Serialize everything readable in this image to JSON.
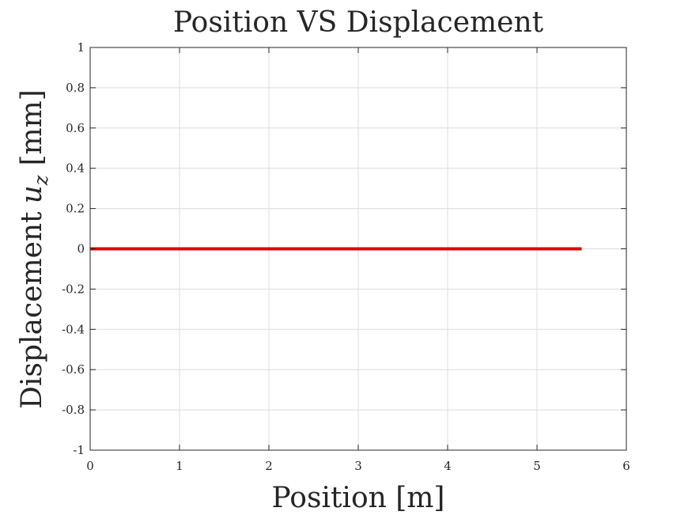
{
  "chart_data": {
    "type": "line",
    "title": "Position VS Displacement",
    "xlabel": "Position [m]",
    "ylabel_main": "Displacement",
    "ylabel_var": "u",
    "ylabel_sub": "z",
    "ylabel_unit": "[mm]",
    "xlim": [
      0,
      6
    ],
    "ylim": [
      -1,
      1
    ],
    "xticks": [
      0,
      1,
      2,
      3,
      4,
      5,
      6
    ],
    "yticks": [
      -1,
      -0.8,
      -0.6,
      -0.4,
      -0.2,
      0,
      0.2,
      0.4,
      0.6,
      0.8,
      1
    ],
    "grid": true,
    "series": [
      {
        "color": "#e00000",
        "x": [
          0,
          0.5,
          1,
          1.5,
          2,
          2.5,
          3,
          3.5,
          4,
          4.5,
          5,
          5.5
        ],
        "y": [
          0,
          0,
          0,
          0,
          0,
          0,
          0,
          0,
          0,
          0,
          0,
          0
        ]
      }
    ]
  }
}
